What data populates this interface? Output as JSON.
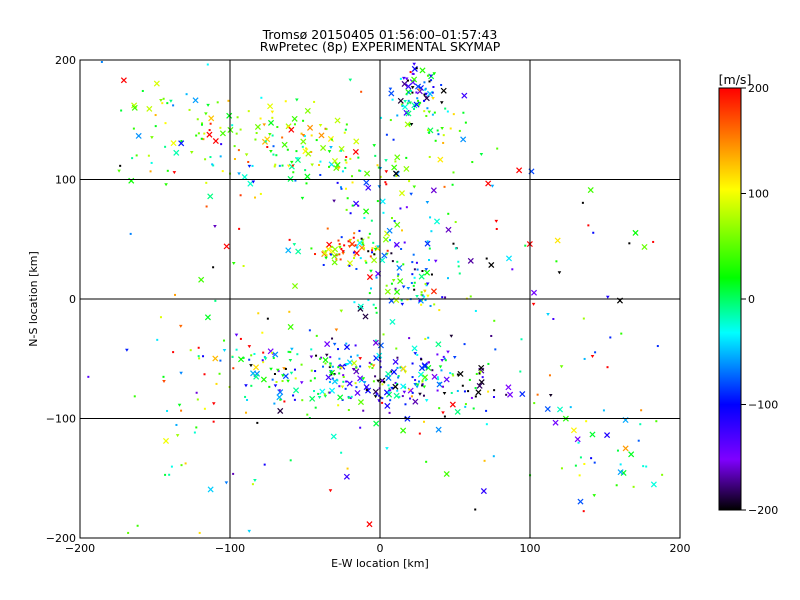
{
  "chart_data": {
    "type": "scatter",
    "title": "Tromsø 20150405 01:56:00–01:57:43",
    "subtitle": "RwPretec (8p) EXPERIMENTAL SKYMAP",
    "xlabel": "E-W location [km]",
    "ylabel": "N-S location [km]",
    "xlim": [
      -200,
      200
    ],
    "ylim": [
      -200,
      200
    ],
    "x_ticks": [
      -200,
      -100,
      0,
      100,
      200
    ],
    "y_ticks": [
      -200,
      -100,
      0,
      100,
      200
    ],
    "x_tick_labels": [
      "−200",
      "−100",
      "0",
      "100",
      "200"
    ],
    "y_tick_labels": [
      "−200",
      "−100",
      "0",
      "100",
      "200"
    ],
    "grid": true,
    "colorbar": {
      "label": "[m/s]",
      "range": [
        -200,
        200
      ],
      "ticks": [
        200,
        100,
        0,
        -100,
        -200
      ],
      "tick_labels": [
        "200",
        "100",
        "0",
        "−100",
        "−200"
      ],
      "colors": [
        "#000000",
        "#7f00ff",
        "#0000ff",
        "#00ffff",
        "#00ff00",
        "#ffff00",
        "#ff0000"
      ]
    },
    "clusters": [
      {
        "x": 25,
        "y": 175,
        "sx": 8,
        "sy": 12,
        "n": 70,
        "vmean": -80,
        "vspread": 90
      },
      {
        "x": 35,
        "y": 145,
        "sx": 15,
        "sy": 10,
        "n": 30,
        "vmean": 40,
        "vspread": 60
      },
      {
        "x": -70,
        "y": 135,
        "sx": 35,
        "sy": 20,
        "n": 110,
        "vmean": 60,
        "vspread": 70
      },
      {
        "x": -25,
        "y": 110,
        "sx": 35,
        "sy": 12,
        "n": 60,
        "vmean": 40,
        "vspread": 70
      },
      {
        "x": -140,
        "y": 150,
        "sx": 25,
        "sy": 25,
        "n": 35,
        "vmean": 40,
        "vspread": 80
      },
      {
        "x": -25,
        "y": 42,
        "sx": 15,
        "sy": 6,
        "n": 60,
        "vmean": 120,
        "vspread": 80
      },
      {
        "x": 0,
        "y": 70,
        "sx": 12,
        "sy": 30,
        "n": 50,
        "vmean": 20,
        "vspread": 90
      },
      {
        "x": 20,
        "y": 5,
        "sx": 18,
        "sy": 12,
        "n": 50,
        "vmean": 0,
        "vspread": 80
      },
      {
        "x": 10,
        "y": 30,
        "sx": 20,
        "sy": 15,
        "n": 40,
        "vmean": -120,
        "vspread": 80
      },
      {
        "x": 0,
        "y": -65,
        "sx": 35,
        "sy": 15,
        "n": 200,
        "vmean": -90,
        "vspread": 90
      },
      {
        "x": -60,
        "y": -60,
        "sx": 30,
        "sy": 15,
        "n": 80,
        "vmean": 0,
        "vspread": 90
      },
      {
        "x": 30,
        "y": -85,
        "sx": 35,
        "sy": 15,
        "n": 60,
        "vmean": -80,
        "vspread": 100
      },
      {
        "x": 150,
        "y": -120,
        "sx": 30,
        "sy": 30,
        "n": 40,
        "vmean": 0,
        "vspread": 60
      },
      {
        "x": 100,
        "y": 20,
        "sx": 60,
        "sy": 40,
        "n": 35,
        "vmean": 60,
        "vspread": 150
      },
      {
        "x": -120,
        "y": -90,
        "sx": 40,
        "sy": 60,
        "n": 50,
        "vmean": 60,
        "vspread": 120
      },
      {
        "x": 0,
        "y": 0,
        "sx": 110,
        "sy": 110,
        "n": 120,
        "vmean": 0,
        "vspread": 160
      }
    ]
  }
}
